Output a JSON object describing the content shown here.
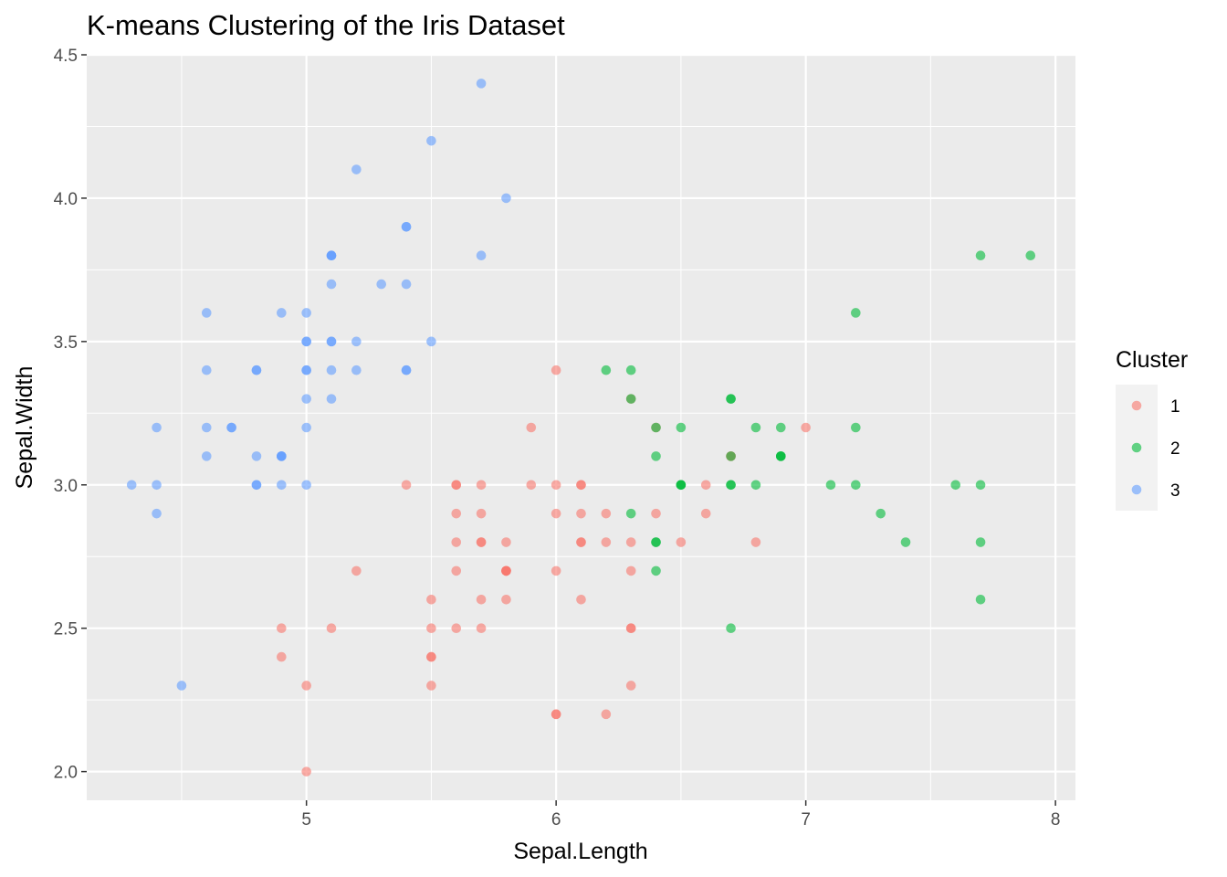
{
  "chart_data": {
    "type": "scatter",
    "title": "K-means Clustering of the Iris Dataset",
    "xlabel": "Sepal.Length",
    "ylabel": "Sepal.Width",
    "xlim": [
      4.12,
      8.08
    ],
    "ylim": [
      1.9,
      4.5
    ],
    "x_ticks": [
      5,
      6,
      7,
      8
    ],
    "x_tick_labels": [
      "5",
      "6",
      "7",
      "8"
    ],
    "y_ticks": [
      2.0,
      2.5,
      3.0,
      3.5,
      4.0,
      4.5
    ],
    "y_tick_labels": [
      "2.0",
      "2.5",
      "3.0",
      "3.5",
      "4.0",
      "4.5"
    ],
    "grid": true,
    "legend": {
      "title": "Cluster",
      "position": "right"
    },
    "series": [
      {
        "name": "1",
        "color": "#F8766D",
        "points": [
          [
            7.0,
            3.2
          ],
          [
            6.4,
            3.2
          ],
          [
            5.5,
            2.3
          ],
          [
            6.5,
            2.8
          ],
          [
            5.7,
            2.8
          ],
          [
            6.3,
            3.3
          ],
          [
            4.9,
            2.4
          ],
          [
            6.6,
            2.9
          ],
          [
            5.2,
            2.7
          ],
          [
            5.0,
            2.0
          ],
          [
            5.9,
            3.0
          ],
          [
            6.0,
            2.2
          ],
          [
            6.1,
            2.9
          ],
          [
            5.6,
            2.9
          ],
          [
            6.7,
            3.1
          ],
          [
            5.6,
            3.0
          ],
          [
            5.8,
            2.7
          ],
          [
            6.2,
            2.2
          ],
          [
            5.6,
            2.5
          ],
          [
            5.9,
            3.2
          ],
          [
            6.1,
            2.8
          ],
          [
            6.3,
            2.5
          ],
          [
            6.1,
            2.8
          ],
          [
            6.4,
            2.9
          ],
          [
            6.6,
            3.0
          ],
          [
            6.8,
            2.8
          ],
          [
            6.0,
            2.9
          ],
          [
            5.7,
            2.6
          ],
          [
            5.5,
            2.4
          ],
          [
            5.5,
            2.4
          ],
          [
            5.8,
            2.7
          ],
          [
            6.0,
            2.7
          ],
          [
            5.4,
            3.0
          ],
          [
            6.0,
            3.4
          ],
          [
            6.7,
            3.1
          ],
          [
            6.3,
            2.3
          ],
          [
            5.6,
            3.0
          ],
          [
            5.5,
            2.5
          ],
          [
            5.5,
            2.6
          ],
          [
            6.1,
            3.0
          ],
          [
            5.8,
            2.6
          ],
          [
            5.0,
            2.3
          ],
          [
            5.6,
            2.7
          ],
          [
            5.7,
            3.0
          ],
          [
            5.7,
            2.9
          ],
          [
            6.2,
            2.9
          ],
          [
            5.1,
            2.5
          ],
          [
            5.7,
            2.8
          ],
          [
            5.8,
            2.7
          ],
          [
            4.9,
            2.5
          ],
          [
            5.7,
            2.5
          ],
          [
            5.8,
            2.8
          ],
          [
            6.0,
            2.2
          ],
          [
            5.6,
            2.8
          ],
          [
            6.3,
            2.7
          ],
          [
            6.2,
            2.8
          ],
          [
            6.1,
            3.0
          ],
          [
            6.3,
            2.8
          ],
          [
            6.1,
            2.6
          ],
          [
            6.3,
            2.5
          ],
          [
            6.0,
            3.0
          ],
          [
            5.8,
            2.7
          ]
        ]
      },
      {
        "name": "2",
        "color": "#00BA38",
        "points": [
          [
            6.9,
            3.1
          ],
          [
            6.7,
            3.0
          ],
          [
            7.1,
            3.0
          ],
          [
            6.5,
            3.0
          ],
          [
            7.6,
            3.0
          ],
          [
            7.3,
            2.9
          ],
          [
            6.7,
            2.5
          ],
          [
            7.2,
            3.6
          ],
          [
            6.5,
            3.2
          ],
          [
            6.4,
            2.7
          ],
          [
            6.8,
            3.0
          ],
          [
            6.4,
            3.2
          ],
          [
            6.5,
            3.0
          ],
          [
            7.7,
            3.8
          ],
          [
            7.7,
            2.6
          ],
          [
            6.9,
            3.2
          ],
          [
            7.7,
            2.8
          ],
          [
            6.7,
            3.3
          ],
          [
            7.2,
            3.2
          ],
          [
            6.2,
            3.4
          ],
          [
            6.4,
            2.8
          ],
          [
            7.2,
            3.0
          ],
          [
            7.4,
            2.8
          ],
          [
            7.9,
            3.8
          ],
          [
            6.4,
            2.8
          ],
          [
            7.7,
            3.0
          ],
          [
            6.3,
            3.4
          ],
          [
            6.4,
            3.1
          ],
          [
            6.9,
            3.1
          ],
          [
            6.7,
            3.1
          ],
          [
            6.9,
            3.1
          ],
          [
            6.8,
            3.2
          ],
          [
            6.7,
            3.3
          ],
          [
            6.7,
            3.0
          ],
          [
            6.5,
            3.0
          ],
          [
            6.3,
            2.9
          ],
          [
            6.3,
            3.3
          ]
        ]
      },
      {
        "name": "3",
        "color": "#619CFF",
        "points": [
          [
            5.1,
            3.5
          ],
          [
            4.9,
            3.0
          ],
          [
            4.7,
            3.2
          ],
          [
            4.6,
            3.1
          ],
          [
            5.0,
            3.6
          ],
          [
            5.4,
            3.9
          ],
          [
            4.6,
            3.4
          ],
          [
            5.0,
            3.4
          ],
          [
            4.4,
            2.9
          ],
          [
            4.9,
            3.1
          ],
          [
            5.4,
            3.7
          ],
          [
            4.8,
            3.4
          ],
          [
            4.8,
            3.0
          ],
          [
            4.3,
            3.0
          ],
          [
            5.8,
            4.0
          ],
          [
            5.7,
            4.4
          ],
          [
            5.4,
            3.9
          ],
          [
            5.1,
            3.5
          ],
          [
            5.7,
            3.8
          ],
          [
            5.1,
            3.8
          ],
          [
            5.4,
            3.4
          ],
          [
            5.1,
            3.7
          ],
          [
            4.6,
            3.6
          ],
          [
            5.1,
            3.3
          ],
          [
            4.8,
            3.4
          ],
          [
            5.0,
            3.0
          ],
          [
            5.0,
            3.4
          ],
          [
            5.2,
            3.5
          ],
          [
            5.2,
            3.4
          ],
          [
            4.7,
            3.2
          ],
          [
            4.8,
            3.1
          ],
          [
            5.4,
            3.4
          ],
          [
            5.2,
            4.1
          ],
          [
            5.5,
            4.2
          ],
          [
            4.9,
            3.1
          ],
          [
            5.0,
            3.2
          ],
          [
            5.5,
            3.5
          ],
          [
            4.9,
            3.6
          ],
          [
            4.4,
            3.0
          ],
          [
            5.1,
            3.4
          ],
          [
            5.0,
            3.5
          ],
          [
            4.5,
            2.3
          ],
          [
            4.4,
            3.2
          ],
          [
            5.0,
            3.5
          ],
          [
            5.1,
            3.8
          ],
          [
            4.8,
            3.0
          ],
          [
            5.1,
            3.8
          ],
          [
            4.6,
            3.2
          ],
          [
            5.3,
            3.7
          ],
          [
            5.0,
            3.3
          ],
          [
            4.9,
            3.1
          ]
        ]
      }
    ]
  }
}
